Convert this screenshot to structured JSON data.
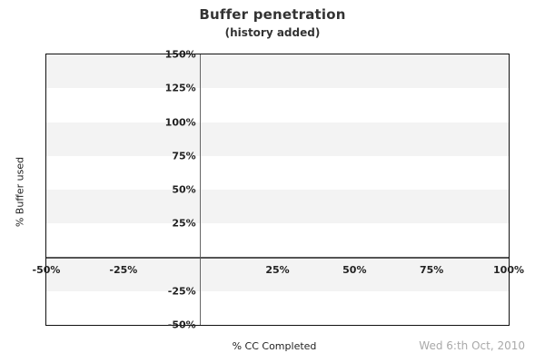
{
  "chart_data": {
    "type": "line",
    "title": "Buffer penetration",
    "subtitle": "(history added)",
    "xlabel": "% CC Completed",
    "ylabel": "% Buffer used",
    "footer_date": "Wed 6:th Oct, 2010",
    "xlim": [
      -50,
      100
    ],
    "ylim": [
      -50,
      150
    ],
    "x_ticks": [
      {
        "value": -50,
        "label": "-50%"
      },
      {
        "value": -25,
        "label": "-25%"
      },
      {
        "value": 25,
        "label": "25%"
      },
      {
        "value": 50,
        "label": "50%"
      },
      {
        "value": 75,
        "label": "75%"
      },
      {
        "value": 100,
        "label": "100%"
      }
    ],
    "y_ticks": [
      {
        "value": 150,
        "label": "150%"
      },
      {
        "value": 125,
        "label": "125%"
      },
      {
        "value": 100,
        "label": "100%"
      },
      {
        "value": 75,
        "label": "75%"
      },
      {
        "value": 50,
        "label": "50%"
      },
      {
        "value": 25,
        "label": "25%"
      },
      {
        "value": -25,
        "label": "-25%"
      },
      {
        "value": -50,
        "label": "-50%"
      }
    ],
    "gray_bands": [
      [
        125,
        150
      ],
      [
        75,
        100
      ],
      [
        25,
        50
      ],
      [
        -25,
        0
      ]
    ],
    "series": [],
    "legend": null,
    "grid": "alternating-horizontal-bands",
    "colors": {
      "band_fill": "#f3f3f3",
      "plot_border": "#111111",
      "zero_line_v": "#666666",
      "zero_line_h": "#555555",
      "tick_text": "#222222",
      "title_text": "#333333",
      "date_text": "#a9a9a9",
      "background": "#ffffff"
    }
  }
}
